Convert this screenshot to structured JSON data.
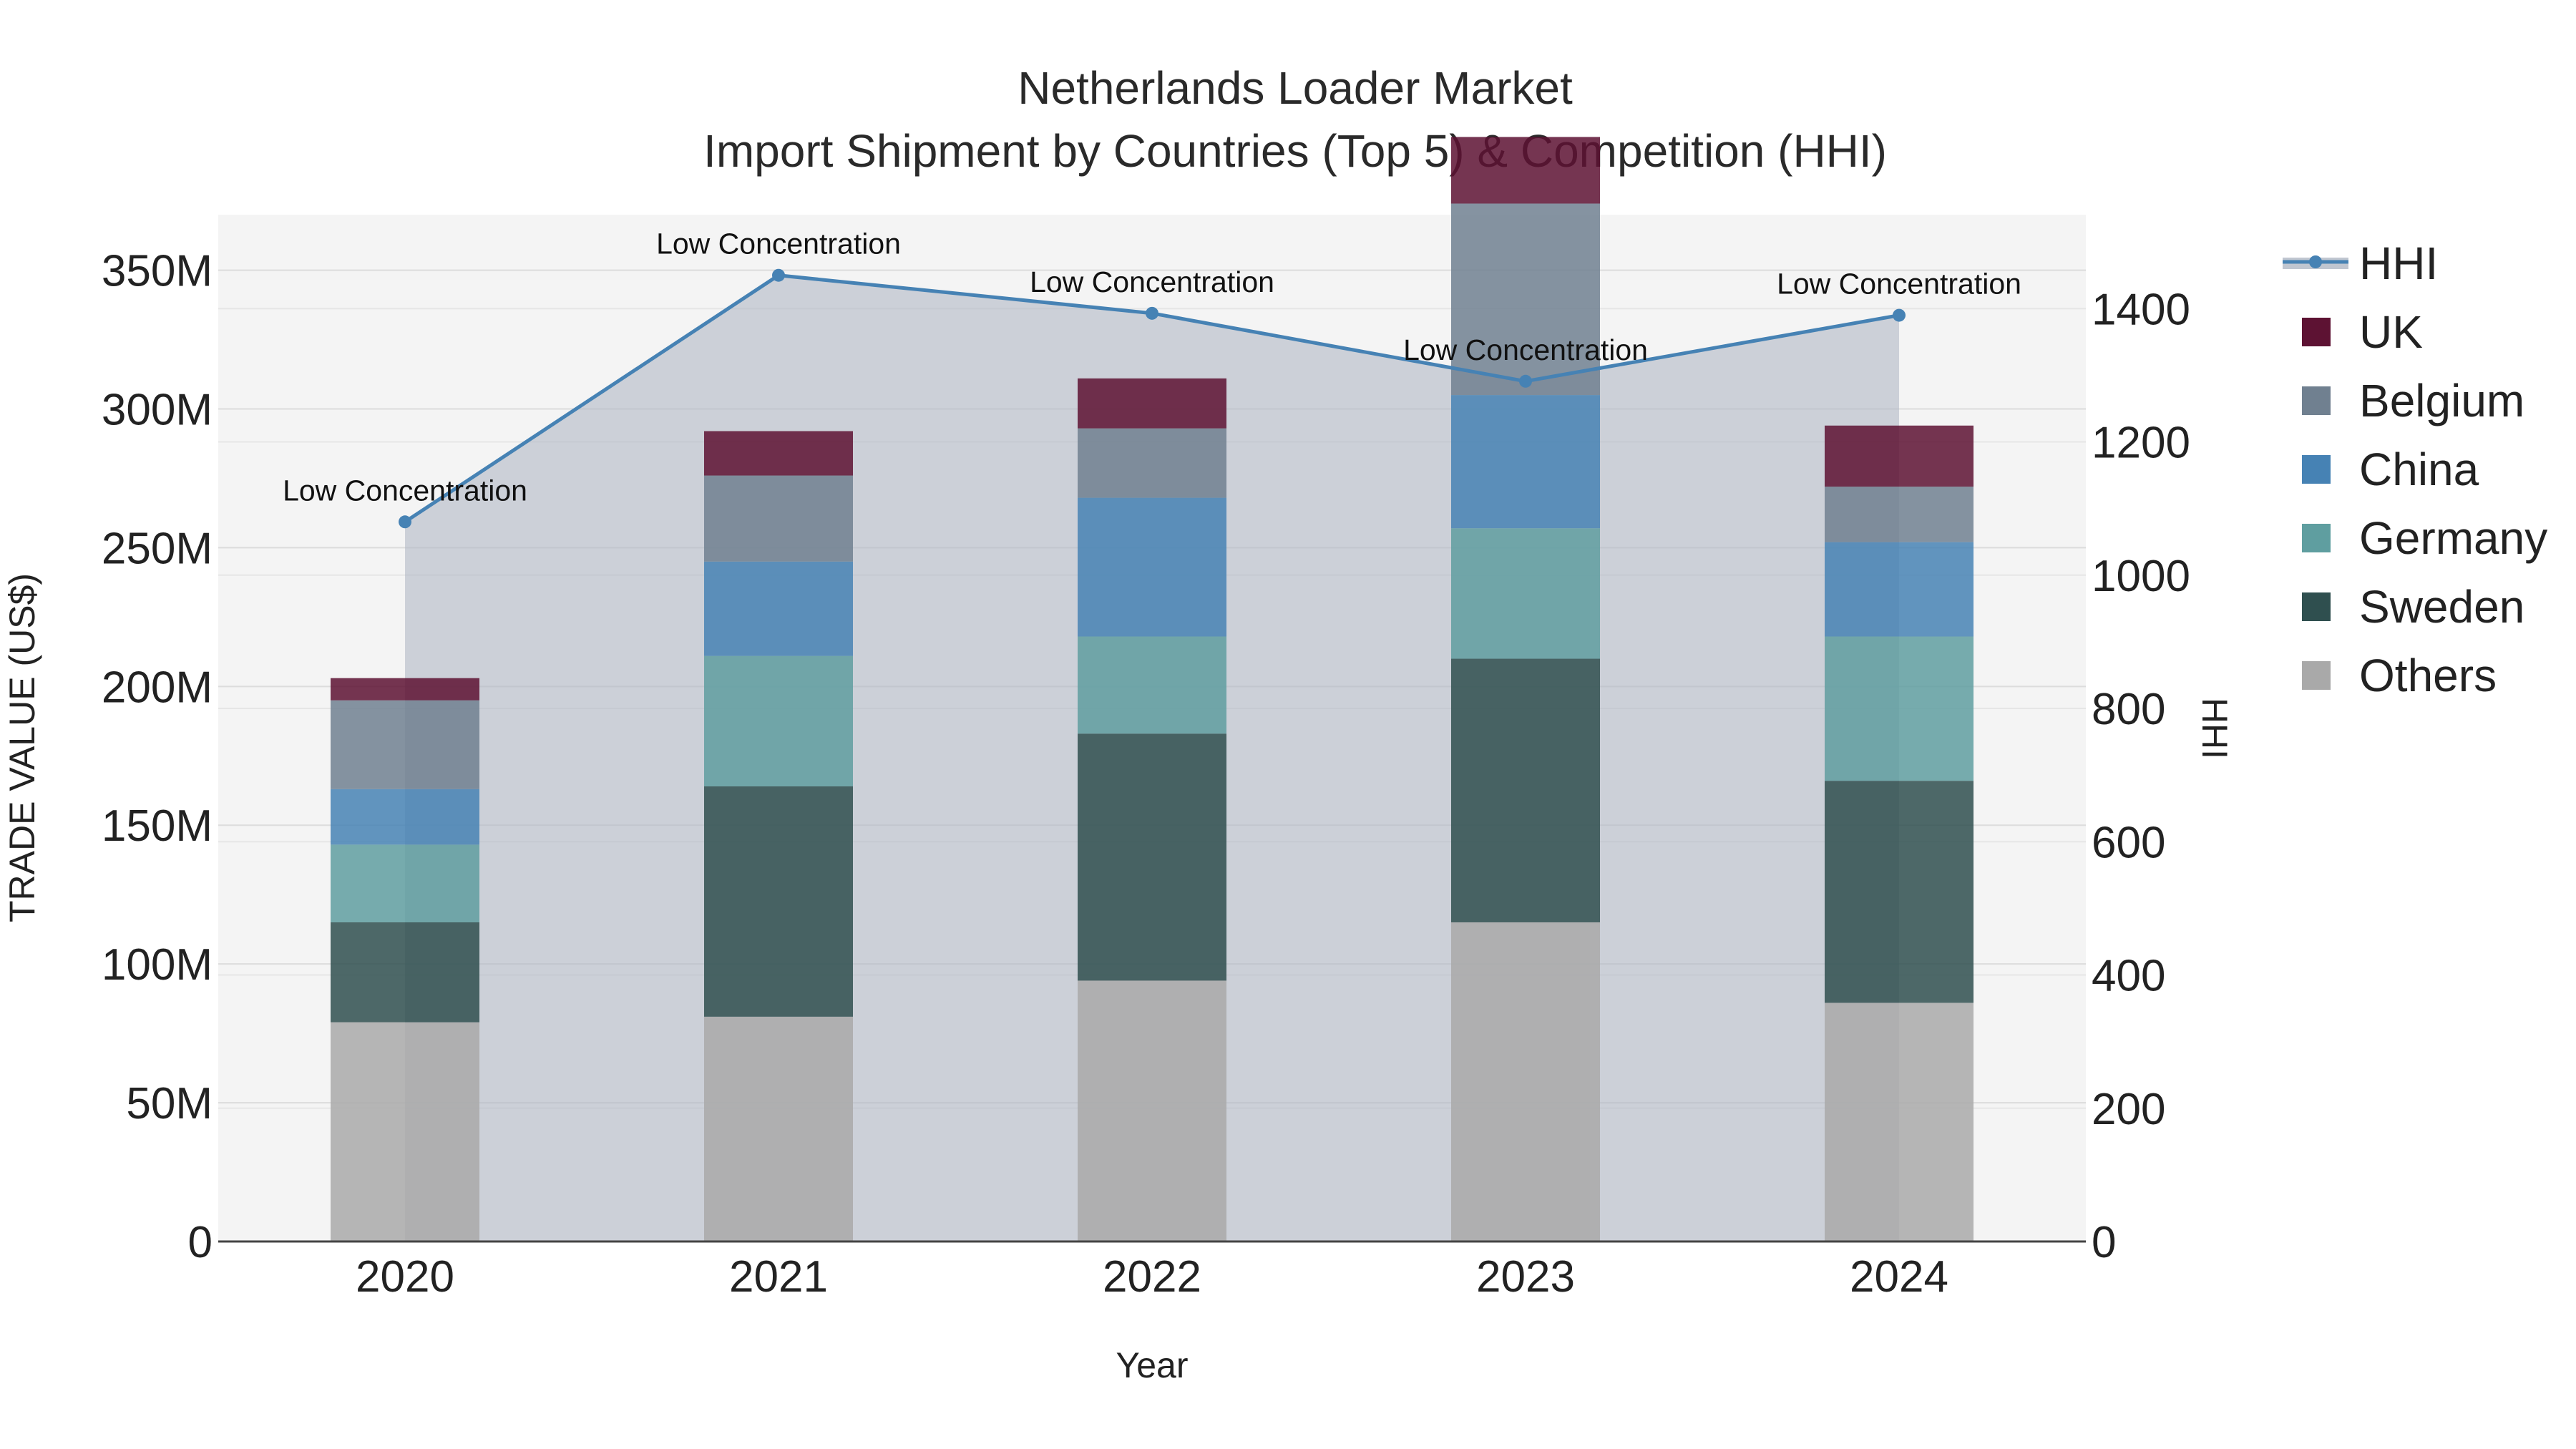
{
  "chart_data": {
    "type": "bar",
    "title": "Netherlands Loader Market",
    "subtitle": "Import Shipment by Countries (Top 5) & Competition (HHI)",
    "xlabel": "Year",
    "ylabel": "TRADE VALUE (US$)",
    "y2label": "HHI",
    "categories": [
      "2020",
      "2021",
      "2022",
      "2023",
      "2024"
    ],
    "ylim": [
      0,
      370
    ],
    "y_ticks": [
      {
        "value": 0,
        "label": "0"
      },
      {
        "value": 50,
        "label": "50M"
      },
      {
        "value": 100,
        "label": "100M"
      },
      {
        "value": 150,
        "label": "150M"
      },
      {
        "value": 200,
        "label": "200M"
      },
      {
        "value": 250,
        "label": "250M"
      },
      {
        "value": 300,
        "label": "300M"
      },
      {
        "value": 350,
        "label": "350M"
      }
    ],
    "y2lim": [
      0,
      1541
    ],
    "y2_ticks": [
      {
        "value": 0,
        "label": "0"
      },
      {
        "value": 200,
        "label": "200"
      },
      {
        "value": 400,
        "label": "400"
      },
      {
        "value": 600,
        "label": "600"
      },
      {
        "value": 800,
        "label": "800"
      },
      {
        "value": 1000,
        "label": "1000"
      },
      {
        "value": 1200,
        "label": "1200"
      },
      {
        "value": 1400,
        "label": "1400"
      }
    ],
    "stack_series": [
      {
        "name": "Others",
        "color": "#a9a9a9",
        "values": [
          79,
          81,
          94,
          115,
          86
        ]
      },
      {
        "name": "Sweden",
        "color": "#2f4f4f",
        "values": [
          36,
          83,
          89,
          95,
          80
        ]
      },
      {
        "name": "Germany",
        "color": "#5f9ea0",
        "values": [
          28,
          47,
          35,
          47,
          52
        ]
      },
      {
        "name": "China",
        "color": "#4682b4",
        "values": [
          20,
          34,
          50,
          48,
          34
        ]
      },
      {
        "name": "Belgium",
        "color": "#708090",
        "values": [
          32,
          31,
          25,
          69,
          20
        ]
      },
      {
        "name": "UK",
        "color": "#5d1233",
        "values": [
          8,
          16,
          18,
          24,
          22
        ]
      }
    ],
    "hhi": {
      "name": "HHI",
      "color": "#4682b4",
      "values": [
        1080,
        1450,
        1393,
        1291,
        1390
      ],
      "labels": [
        "Low Concentration",
        "Low Concentration",
        "Low Concentration",
        "Low Concentration",
        "Low Concentration"
      ]
    },
    "legend_position": "right"
  }
}
